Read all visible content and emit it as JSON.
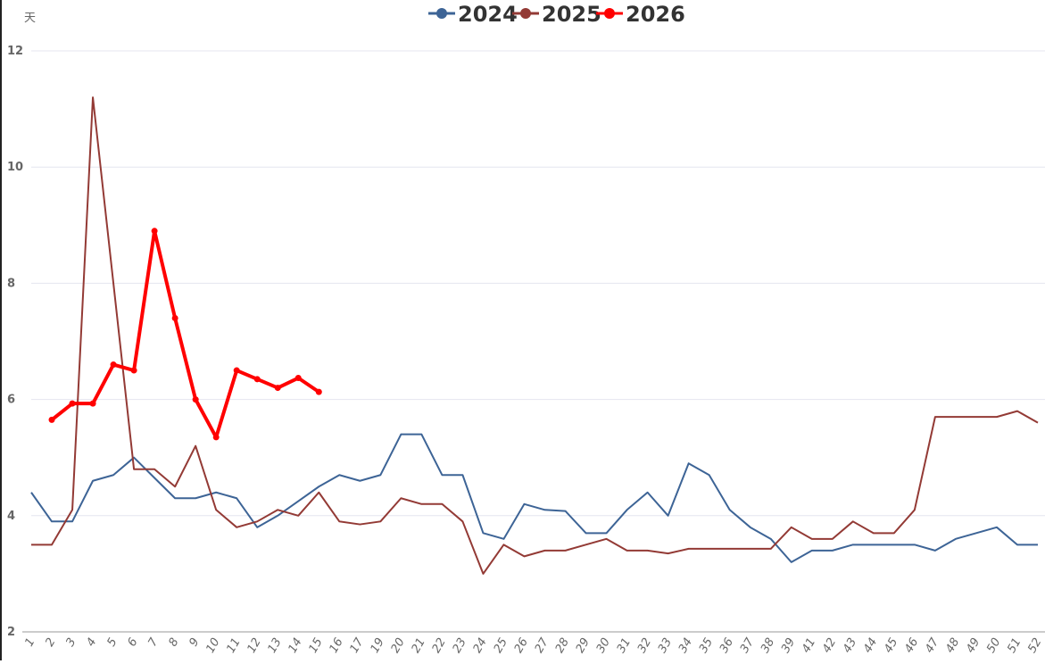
{
  "chart_data": {
    "type": "line",
    "y_unit": "天",
    "categories": [
      "1",
      "2",
      "3",
      "4",
      "5",
      "6",
      "7",
      "8",
      "9",
      "10",
      "11",
      "12",
      "13",
      "14",
      "15",
      "16",
      "17",
      "19",
      "20",
      "21",
      "22",
      "23",
      "24",
      "25",
      "26",
      "27",
      "28",
      "29",
      "30",
      "31",
      "32",
      "33",
      "34",
      "35",
      "36",
      "37",
      "38",
      "39",
      "41",
      "42",
      "43",
      "44",
      "45",
      "46",
      "47",
      "48",
      "49",
      "50",
      "51",
      "52"
    ],
    "series": [
      {
        "name": "2024",
        "color": "#3d6496",
        "values": [
          4.4,
          3.9,
          3.9,
          4.6,
          4.7,
          5.0,
          4.65,
          4.3,
          4.3,
          4.4,
          4.3,
          3.8,
          4.0,
          4.25,
          4.5,
          4.7,
          4.6,
          4.7,
          5.4,
          5.4,
          4.7,
          4.7,
          3.7,
          3.6,
          4.2,
          4.1,
          4.08,
          3.7,
          3.7,
          4.1,
          4.4,
          4.0,
          4.9,
          4.7,
          4.1,
          3.8,
          3.6,
          3.2,
          3.4,
          3.4,
          3.5,
          3.5,
          3.5,
          3.5,
          3.4,
          3.6,
          3.7,
          3.8,
          3.5,
          3.5
        ]
      },
      {
        "name": "2025",
        "color": "#933a35",
        "values": [
          3.5,
          3.5,
          4.1,
          11.2,
          8.0,
          4.8,
          4.8,
          4.5,
          5.2,
          4.1,
          3.8,
          3.9,
          4.1,
          4.0,
          4.4,
          3.9,
          3.85,
          3.9,
          4.3,
          4.2,
          4.2,
          3.9,
          3.0,
          3.5,
          3.3,
          3.4,
          3.4,
          3.5,
          3.6,
          3.4,
          3.4,
          3.35,
          3.43,
          3.43,
          3.43,
          3.43,
          3.43,
          3.8,
          3.6,
          3.6,
          3.9,
          3.7,
          3.7,
          4.1,
          5.7,
          5.7,
          5.7,
          5.7,
          5.8,
          5.6
        ]
      },
      {
        "name": "2026",
        "color": "#ff0000",
        "values": [
          null,
          5.65,
          5.93,
          5.93,
          6.6,
          6.5,
          8.9,
          7.4,
          6.0,
          5.35,
          6.5,
          6.35,
          6.2,
          6.37,
          6.13,
          null,
          null,
          null,
          null,
          null,
          null,
          null,
          null,
          null,
          null,
          null,
          null,
          null,
          null,
          null,
          null,
          null,
          null,
          null,
          null,
          null,
          null,
          null,
          null,
          null,
          null,
          null,
          null,
          null,
          null,
          null,
          null,
          null,
          null,
          null
        ]
      }
    ],
    "ylim": [
      2,
      12
    ],
    "yticks": [
      2,
      4,
      6,
      8,
      10,
      12
    ],
    "grid": true,
    "legend": "top"
  }
}
